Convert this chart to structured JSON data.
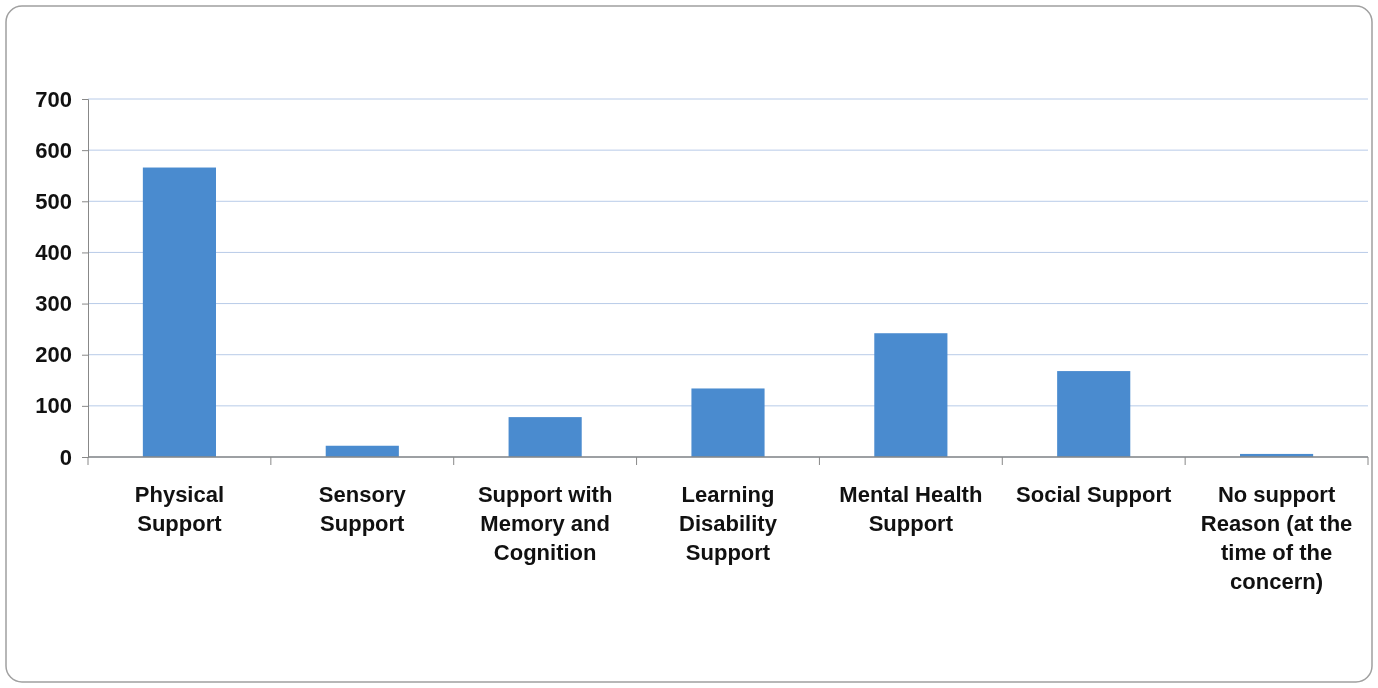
{
  "chart_data": {
    "type": "bar",
    "categories": [
      "Physical Support",
      "Sensory Support",
      "Support with Memory and Cognition",
      "Learning Disability Support",
      "Mental Health Support",
      "Social Support",
      "No support Reason (at the time of the concern)"
    ],
    "values": [
      566,
      22,
      78,
      134,
      242,
      168,
      6
    ],
    "color": "#4a8bcf",
    "ylim": [
      0,
      700
    ],
    "yticks": [
      0,
      100,
      200,
      300,
      400,
      500,
      600,
      700
    ],
    "grid": "y"
  }
}
